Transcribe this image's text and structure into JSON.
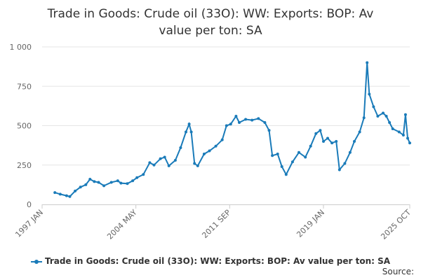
{
  "chart_data": {
    "type": "line",
    "title_lines": [
      "Trade in Goods: Crude oil (33O): WW: Exports: BOP: Av",
      "value per ton: SA"
    ],
    "source_label": "Source:",
    "ylim": [
      0,
      1000
    ],
    "y_ticks": [
      {
        "value": 0,
        "label": "0"
      },
      {
        "value": 250,
        "label": "250"
      },
      {
        "value": 500,
        "label": "500"
      },
      {
        "value": 750,
        "label": "750"
      },
      {
        "value": 1000,
        "label": "1 000"
      }
    ],
    "x_ticks": [
      {
        "date": "1997-01",
        "label": "1997 JAN"
      },
      {
        "date": "2004-05",
        "label": "2004 MAY"
      },
      {
        "date": "2011-09",
        "label": "2011 SEP"
      },
      {
        "date": "2019-01",
        "label": "2019 JAN"
      },
      {
        "date": "2025-10",
        "label": "2025 OCT"
      }
    ],
    "xlim": [
      "1997-01",
      "2025-10"
    ],
    "grid": "horizontal",
    "legend_position": "bottom",
    "series": [
      {
        "name": "Trade in Goods: Crude oil (33O): WW: Exports: BOP: Av value per ton: SA",
        "color": "#1a7bb9",
        "points": [
          [
            "1998-01",
            75
          ],
          [
            "1998-06",
            65
          ],
          [
            "1998-12",
            55
          ],
          [
            "1999-03",
            50
          ],
          [
            "1999-08",
            85
          ],
          [
            "2000-01",
            110
          ],
          [
            "2000-06",
            125
          ],
          [
            "2000-10",
            160
          ],
          [
            "2001-02",
            145
          ],
          [
            "2001-06",
            140
          ],
          [
            "2001-11",
            118
          ],
          [
            "2002-06",
            140
          ],
          [
            "2002-12",
            150
          ],
          [
            "2003-03",
            135
          ],
          [
            "2003-09",
            132
          ],
          [
            "2004-02",
            150
          ],
          [
            "2004-06",
            170
          ],
          [
            "2004-12",
            190
          ],
          [
            "2005-06",
            265
          ],
          [
            "2005-10",
            250
          ],
          [
            "2006-04",
            290
          ],
          [
            "2006-08",
            300
          ],
          [
            "2006-12",
            245
          ],
          [
            "2007-06",
            280
          ],
          [
            "2007-11",
            360
          ],
          [
            "2008-04",
            460
          ],
          [
            "2008-07",
            510
          ],
          [
            "2008-09",
            460
          ],
          [
            "2008-12",
            260
          ],
          [
            "2009-03",
            245
          ],
          [
            "2009-09",
            320
          ],
          [
            "2010-02",
            340
          ],
          [
            "2010-08",
            370
          ],
          [
            "2011-02",
            410
          ],
          [
            "2011-06",
            500
          ],
          [
            "2011-10",
            510
          ],
          [
            "2012-03",
            560
          ],
          [
            "2012-06",
            520
          ],
          [
            "2012-12",
            540
          ],
          [
            "2013-06",
            535
          ],
          [
            "2013-12",
            545
          ],
          [
            "2014-06",
            520
          ],
          [
            "2014-10",
            470
          ],
          [
            "2015-01",
            310
          ],
          [
            "2015-06",
            320
          ],
          [
            "2015-10",
            240
          ],
          [
            "2016-02",
            190
          ],
          [
            "2016-08",
            270
          ],
          [
            "2017-02",
            330
          ],
          [
            "2017-08",
            300
          ],
          [
            "2018-01",
            370
          ],
          [
            "2018-06",
            450
          ],
          [
            "2018-10",
            470
          ],
          [
            "2019-01",
            400
          ],
          [
            "2019-05",
            420
          ],
          [
            "2019-09",
            390
          ],
          [
            "2020-01",
            400
          ],
          [
            "2020-04",
            220
          ],
          [
            "2020-09",
            260
          ],
          [
            "2021-02",
            330
          ],
          [
            "2021-06",
            400
          ],
          [
            "2021-11",
            460
          ],
          [
            "2022-03",
            550
          ],
          [
            "2022-06",
            900
          ],
          [
            "2022-08",
            700
          ],
          [
            "2022-12",
            620
          ],
          [
            "2023-04",
            560
          ],
          [
            "2023-09",
            580
          ],
          [
            "2023-12",
            560
          ],
          [
            "2024-03",
            520
          ],
          [
            "2024-06",
            480
          ],
          [
            "2024-12",
            460
          ],
          [
            "2025-04",
            440
          ],
          [
            "2025-06",
            570
          ],
          [
            "2025-08",
            420
          ],
          [
            "2025-10",
            390
          ]
        ]
      }
    ]
  }
}
